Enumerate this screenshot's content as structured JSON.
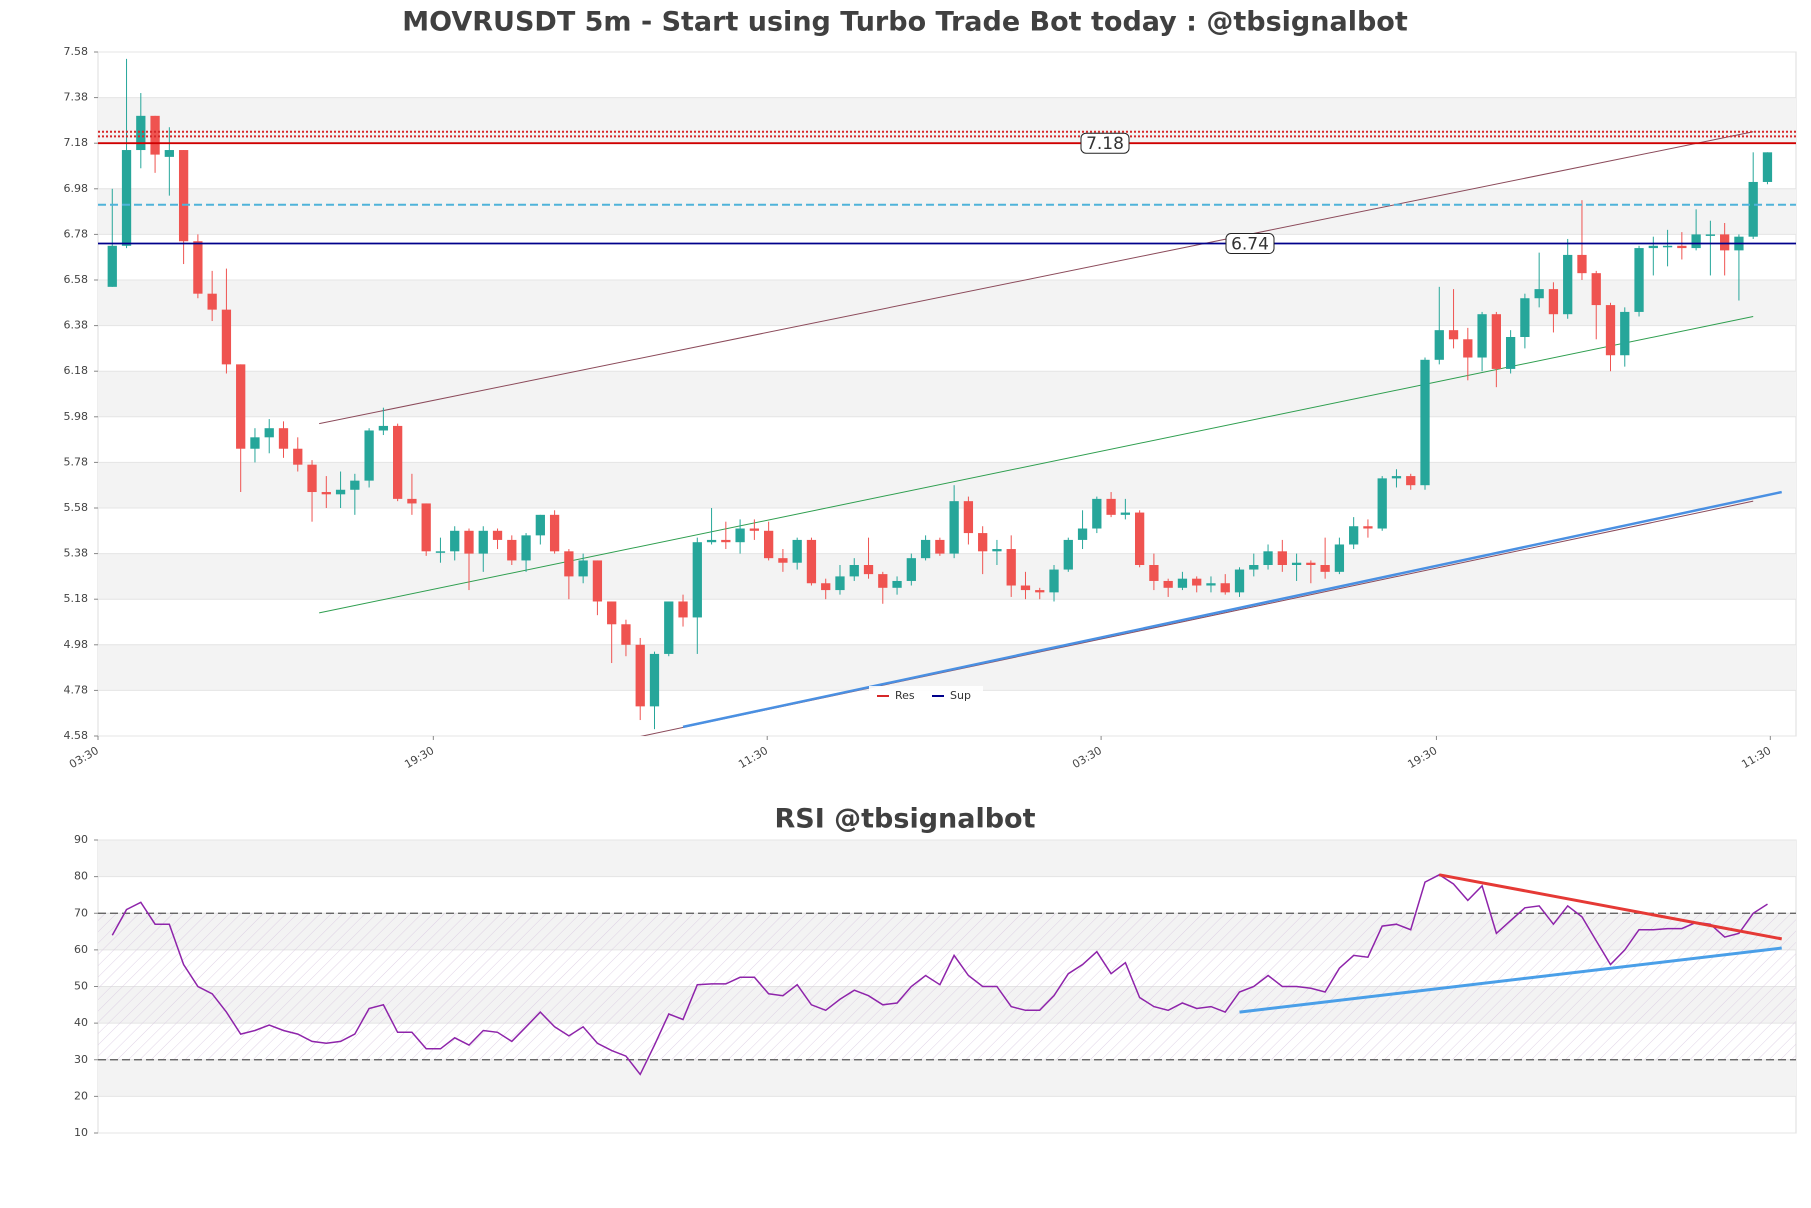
{
  "chart_data": [
    {
      "type": "candlestick",
      "title": "MOVRUSDT 5m - Start using Turbo Trade Bot today : @tbsignalbot",
      "up_color": "#26a69a",
      "down_color": "#ef5350",
      "open": [
        6.55,
        6.73,
        7.15,
        7.3,
        7.12,
        7.15,
        6.75,
        6.52,
        6.45,
        6.21,
        5.84,
        5.89,
        5.93,
        5.84,
        5.77,
        5.65,
        5.64,
        5.66,
        5.7,
        5.92,
        5.94,
        5.62,
        5.6,
        5.39,
        5.39,
        5.48,
        5.38,
        5.48,
        5.44,
        5.35,
        5.46,
        5.55,
        5.39,
        5.28,
        5.35,
        5.17,
        5.07,
        4.98,
        4.71,
        4.94,
        5.17,
        5.1,
        5.43,
        5.44,
        5.43,
        5.49,
        5.48,
        5.36,
        5.34,
        5.44,
        5.25,
        5.22,
        5.28,
        5.33,
        5.29,
        5.23,
        5.26,
        5.36,
        5.44,
        5.38,
        5.61,
        5.47,
        5.39,
        5.4,
        5.24,
        5.22,
        5.21,
        5.31,
        5.44,
        5.49,
        5.62,
        5.55,
        5.56,
        5.33,
        5.26,
        5.23,
        5.27,
        5.24,
        5.25,
        5.21,
        5.31,
        5.33,
        5.39,
        5.33,
        5.34,
        5.33,
        5.3,
        5.42,
        5.5,
        5.49,
        5.71,
        5.72,
        5.68,
        6.23,
        6.36,
        6.32,
        6.24,
        6.43,
        6.19,
        6.33,
        6.5,
        6.54,
        6.43,
        6.69,
        6.61,
        6.47,
        6.25,
        6.44,
        6.72,
        6.73,
        6.73,
        6.72,
        6.78,
        6.78,
        6.71,
        6.77,
        7.01
      ],
      "high": [
        6.98,
        7.55,
        7.4,
        7.3,
        7.25,
        7.15,
        6.78,
        6.62,
        6.63,
        6.21,
        5.93,
        5.97,
        5.96,
        5.89,
        5.79,
        5.72,
        5.74,
        5.73,
        5.93,
        6.02,
        5.95,
        5.73,
        5.6,
        5.45,
        5.5,
        5.49,
        5.5,
        5.49,
        5.46,
        5.47,
        5.55,
        5.57,
        5.4,
        5.38,
        5.35,
        5.17,
        5.09,
        5.01,
        4.95,
        5.17,
        5.2,
        5.45,
        5.58,
        5.52,
        5.53,
        5.53,
        5.52,
        5.4,
        5.45,
        5.45,
        5.27,
        5.33,
        5.36,
        5.45,
        5.3,
        5.28,
        5.38,
        5.46,
        5.45,
        5.68,
        5.63,
        5.5,
        5.44,
        5.46,
        5.3,
        5.23,
        5.33,
        5.45,
        5.57,
        5.63,
        5.65,
        5.62,
        5.57,
        5.38,
        5.27,
        5.3,
        5.28,
        5.28,
        5.29,
        5.32,
        5.38,
        5.42,
        5.44,
        5.38,
        5.35,
        5.45,
        5.45,
        5.54,
        5.53,
        5.72,
        5.75,
        5.73,
        6.24,
        6.55,
        6.54,
        6.37,
        6.44,
        6.44,
        6.36,
        6.52,
        6.7,
        6.57,
        6.76,
        6.93,
        6.62,
        6.48,
        6.46,
        6.73,
        6.77,
        6.8,
        6.79,
        6.89,
        6.84,
        6.83,
        6.78,
        7.14,
        7.14
      ],
      "low": [
        6.55,
        6.72,
        7.07,
        7.05,
        6.95,
        6.65,
        6.5,
        6.4,
        6.17,
        5.65,
        5.78,
        5.82,
        5.8,
        5.74,
        5.52,
        5.58,
        5.58,
        5.55,
        5.67,
        5.9,
        5.61,
        5.55,
        5.37,
        5.34,
        5.35,
        5.22,
        5.3,
        5.4,
        5.33,
        5.3,
        5.42,
        5.38,
        5.18,
        5.25,
        5.11,
        4.9,
        4.93,
        4.65,
        4.61,
        4.93,
        5.06,
        4.94,
        5.42,
        5.4,
        5.38,
        5.44,
        5.35,
        5.3,
        5.31,
        5.24,
        5.18,
        5.2,
        5.26,
        5.27,
        5.16,
        5.2,
        5.24,
        5.35,
        5.37,
        5.36,
        5.42,
        5.29,
        5.33,
        5.19,
        5.18,
        5.18,
        5.17,
        5.3,
        5.4,
        5.47,
        5.54,
        5.53,
        5.32,
        5.22,
        5.19,
        5.22,
        5.21,
        5.21,
        5.2,
        5.19,
        5.28,
        5.31,
        5.3,
        5.26,
        5.25,
        5.27,
        5.29,
        5.4,
        5.45,
        5.48,
        5.67,
        5.66,
        5.66,
        6.21,
        6.28,
        6.14,
        6.18,
        6.11,
        6.17,
        6.28,
        6.46,
        6.35,
        6.41,
        6.58,
        6.32,
        6.18,
        6.2,
        6.42,
        6.6,
        6.64,
        6.67,
        6.71,
        6.6,
        6.6,
        6.49,
        6.76,
        7.0
      ],
      "close": [
        6.73,
        7.15,
        7.3,
        7.13,
        7.15,
        6.75,
        6.52,
        6.45,
        6.21,
        5.84,
        5.89,
        5.93,
        5.84,
        5.77,
        5.65,
        5.64,
        5.66,
        5.7,
        5.92,
        5.94,
        5.62,
        5.6,
        5.39,
        5.39,
        5.48,
        5.38,
        5.48,
        5.44,
        5.35,
        5.46,
        5.55,
        5.39,
        5.28,
        5.35,
        5.17,
        5.07,
        4.98,
        4.71,
        4.94,
        5.17,
        5.1,
        5.43,
        5.44,
        5.43,
        5.49,
        5.48,
        5.36,
        5.34,
        5.44,
        5.25,
        5.22,
        5.28,
        5.33,
        5.29,
        5.23,
        5.26,
        5.36,
        5.44,
        5.38,
        5.61,
        5.47,
        5.39,
        5.4,
        5.24,
        5.22,
        5.21,
        5.31,
        5.44,
        5.49,
        5.62,
        5.55,
        5.56,
        5.33,
        5.26,
        5.23,
        5.27,
        5.24,
        5.25,
        5.21,
        5.31,
        5.33,
        5.39,
        5.33,
        5.34,
        5.33,
        5.3,
        5.42,
        5.5,
        5.49,
        5.71,
        5.72,
        5.68,
        6.23,
        6.36,
        6.32,
        6.24,
        6.43,
        6.19,
        6.33,
        6.5,
        6.54,
        6.43,
        6.69,
        6.61,
        6.47,
        6.25,
        6.44,
        6.72,
        6.73,
        6.73,
        6.72,
        6.78,
        6.78,
        6.71,
        6.77,
        7.01,
        7.14
      ],
      "xlim": [
        -1,
        118
      ],
      "ylim": [
        4.58,
        7.58
      ],
      "xticks": [
        {
          "value": -1,
          "label": "03:30"
        },
        {
          "value": 22.5,
          "label": "19:30"
        },
        {
          "value": 45.9,
          "label": "11:30"
        },
        {
          "value": 69.3,
          "label": "03:30"
        },
        {
          "value": 92.8,
          "label": "19:30"
        },
        {
          "value": 116.2,
          "label": "11:30"
        }
      ],
      "yticks": [
        4.58,
        4.78,
        4.98,
        5.18,
        5.38,
        5.58,
        5.78,
        5.98,
        6.18,
        6.38,
        6.58,
        6.78,
        6.98,
        7.18,
        7.38,
        7.58
      ],
      "hlines": [
        {
          "value": 7.23,
          "color": "#d62728",
          "style": "dotted",
          "labeled": false
        },
        {
          "value": 7.21,
          "color": "#d62728",
          "style": "dotted",
          "labeled": false
        },
        {
          "value": 7.18,
          "color": "#d00000",
          "style": "solid",
          "labeled": true
        },
        {
          "value": 6.91,
          "color": "#4fb3d9",
          "style": "dashed",
          "labeled": false
        },
        {
          "value": 6.74,
          "color": "#00008b",
          "style": "solid",
          "labeled": true
        }
      ],
      "trendlines": [
        {
          "x": [
            14.5,
            115
          ],
          "y": [
            5.95,
            7.23
          ],
          "color": "#8b4a5a",
          "width": 1
        },
        {
          "x": [
            14.5,
            115
          ],
          "y": [
            4.28,
            5.61
          ],
          "color": "#8b4a5a",
          "width": 1
        },
        {
          "x": [
            14.5,
            115
          ],
          "y": [
            5.12,
            6.42
          ],
          "color": "#2e9e4f",
          "width": 1
        },
        {
          "x": [
            40,
            117
          ],
          "y": [
            4.62,
            5.65
          ],
          "color": "#4a90e2",
          "width": 2.5
        }
      ],
      "legend": [
        {
          "name": "Res",
          "color": "#d62728"
        },
        {
          "name": "Sup",
          "color": "#00008b"
        }
      ],
      "legend_position": "lower center"
    },
    {
      "type": "line",
      "title": "RSI @tbsignalbot",
      "color": "#8e24aa",
      "values": [
        64,
        71,
        73,
        67,
        67,
        56,
        50,
        48,
        43,
        37,
        38,
        39.5,
        38,
        37,
        35,
        34.5,
        35,
        37,
        44,
        45,
        37.5,
        37.5,
        33,
        33,
        36,
        34,
        38,
        37.5,
        35,
        39,
        43,
        39,
        36.5,
        39,
        34.5,
        32.5,
        31,
        26,
        34,
        42.5,
        41,
        50.5,
        50.7,
        50.7,
        52.5,
        52.5,
        48,
        47.5,
        50.5,
        45,
        43.5,
        46.5,
        49,
        47.5,
        45,
        45.5,
        50,
        53,
        50.5,
        58.5,
        53,
        50,
        50,
        44.5,
        43.5,
        43.5,
        47.5,
        53.5,
        56,
        59.5,
        53.5,
        56.5,
        47,
        44.5,
        43.5,
        45.5,
        44,
        44.5,
        43,
        48.5,
        50,
        53,
        50,
        50,
        49.5,
        48.5,
        55,
        58.5,
        58,
        66.5,
        67,
        65.5,
        78.5,
        80.5,
        78,
        73.5,
        77.5,
        64.5,
        68,
        71.5,
        72,
        67,
        72,
        69,
        62.5,
        56,
        60,
        65.5,
        65.5,
        65.8,
        65.8,
        67.5,
        67,
        63.5,
        64.5,
        70,
        72.5
      ],
      "xlim": [
        -1,
        118
      ],
      "ylim": [
        10,
        90
      ],
      "yticks": [
        10,
        20,
        30,
        40,
        50,
        60,
        70,
        80,
        90
      ],
      "hlines": [
        {
          "value": 70,
          "color": "#555555",
          "style": "dashed"
        },
        {
          "value": 30,
          "color": "#555555",
          "style": "dashed"
        }
      ],
      "band": [
        30,
        70
      ],
      "trendlines": [
        {
          "x": [
            93,
            117
          ],
          "y": [
            80.5,
            63
          ],
          "color": "#e53935",
          "width": 3
        },
        {
          "x": [
            79,
            117
          ],
          "y": [
            43,
            60.5
          ],
          "color": "#4a9fe8",
          "width": 3
        }
      ]
    }
  ]
}
